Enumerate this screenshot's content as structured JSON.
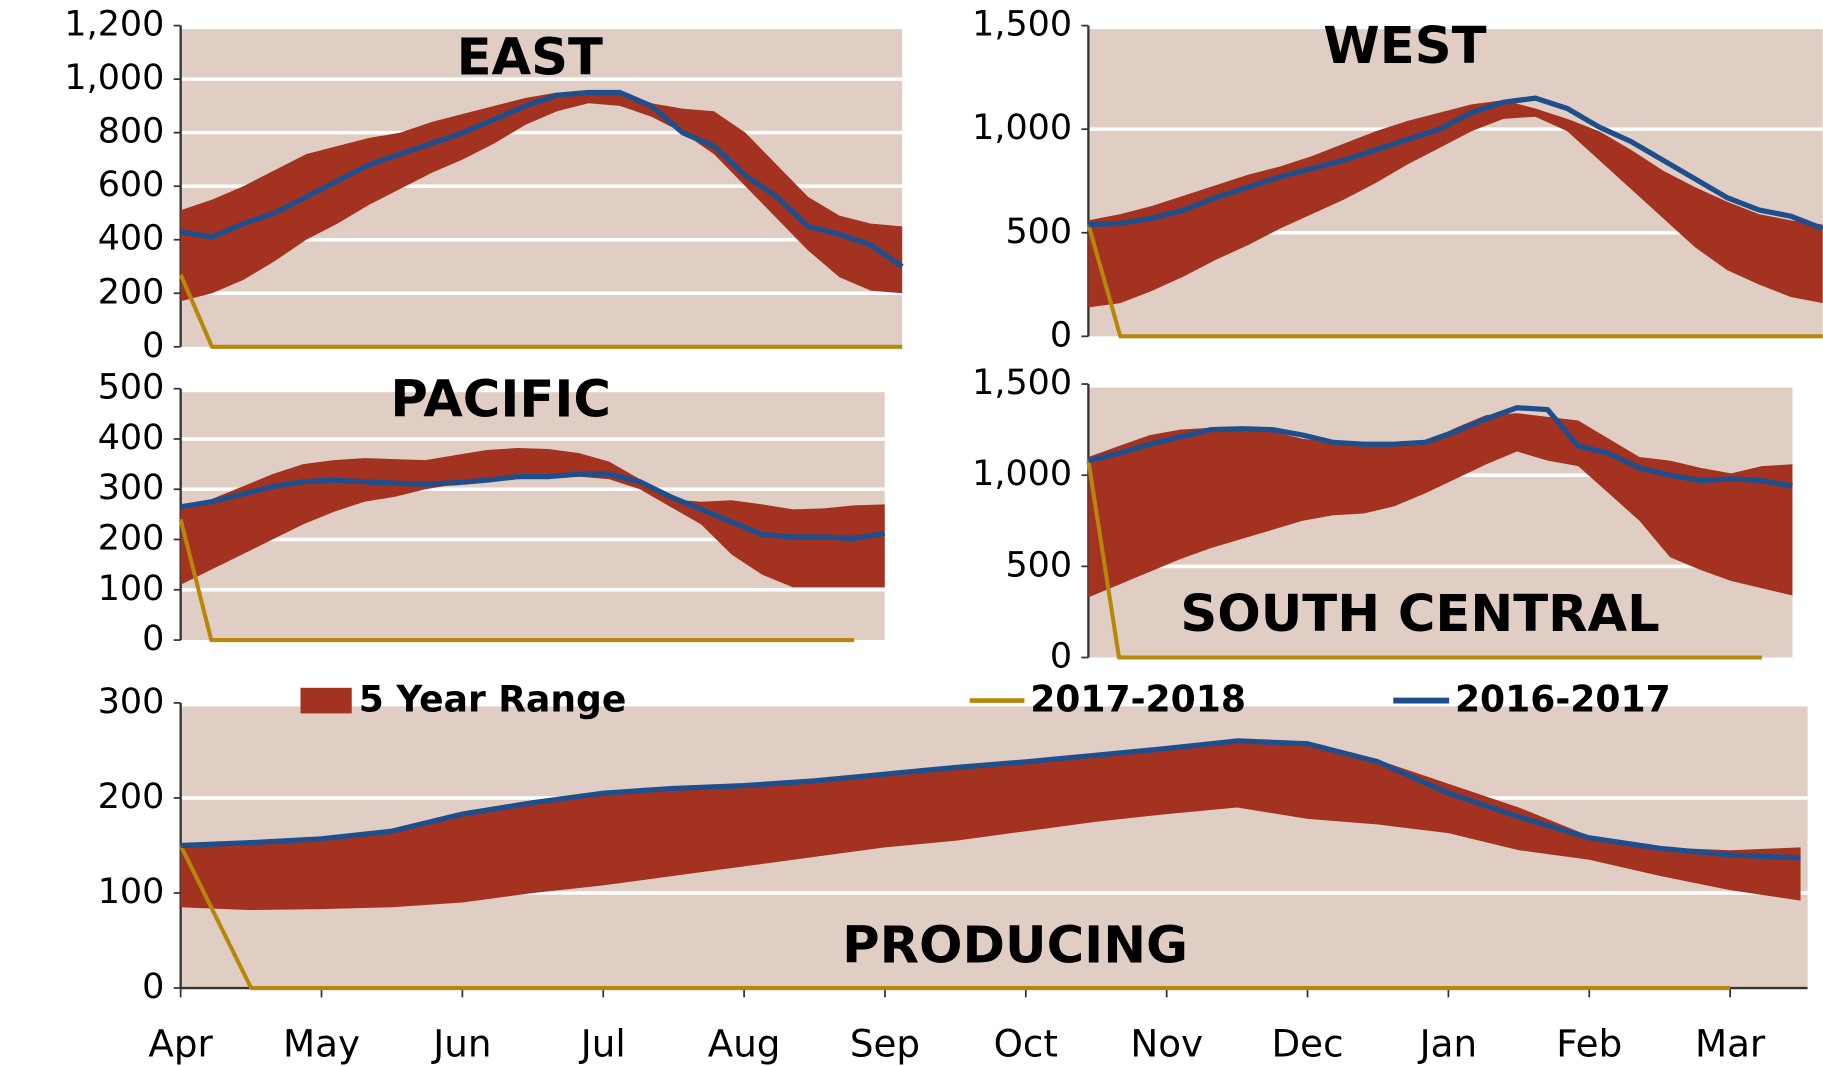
{
  "chart_data": [
    {
      "type": "range-line",
      "title": "EAST",
      "x": [
        0,
        0.5,
        1,
        1.5,
        2,
        2.5,
        3,
        3.5,
        4,
        4.5,
        5,
        5.5,
        6,
        6.5,
        7,
        7.5,
        8,
        8.5,
        9,
        9.5,
        10,
        10.5,
        11,
        11.5
      ],
      "xlim": [
        0,
        11.5
      ],
      "ylim": [
        0,
        1200
      ],
      "yticks": [
        0,
        200,
        400,
        600,
        800,
        {
          "value": 1000,
          "label": "1,000"
        },
        {
          "value": 1200,
          "label": "1,200"
        }
      ],
      "grid": true,
      "series": [
        {
          "color": "#a33220",
          "high": [
            510,
            550,
            600,
            660,
            720,
            750,
            780,
            800,
            840,
            870,
            900,
            930,
            950,
            950,
            950,
            910,
            890,
            880,
            800,
            680,
            560,
            490,
            460,
            450
          ],
          "low": [
            170,
            200,
            250,
            320,
            400,
            460,
            530,
            590,
            650,
            700,
            760,
            830,
            880,
            910,
            900,
            860,
            800,
            720,
            600,
            480,
            360,
            260,
            210,
            200
          ]
        },
        {
          "color": "#b8860b",
          "values": [
            270,
            0,
            0,
            0,
            0,
            0,
            0,
            0,
            0,
            0,
            0,
            0,
            0,
            0,
            0,
            0,
            0,
            0,
            0,
            0,
            0,
            0,
            0,
            0
          ]
        },
        {
          "color": "#1f4e8c",
          "values": [
            430,
            410,
            460,
            500,
            560,
            620,
            680,
            720,
            760,
            800,
            850,
            900,
            940,
            950,
            950,
            900,
            800,
            750,
            640,
            560,
            450,
            420,
            380,
            300
          ]
        }
      ]
    },
    {
      "type": "range-line",
      "title": "WEST",
      "x": [
        0,
        0.5,
        1,
        1.5,
        2,
        2.5,
        3,
        3.5,
        4,
        4.5,
        5,
        5.5,
        6,
        6.5,
        7,
        7.5,
        8,
        8.5,
        9,
        9.5,
        10,
        10.5,
        11,
        11.5
      ],
      "xlim": [
        0,
        11.5
      ],
      "ylim": [
        0,
        1500
      ],
      "yticks": [
        0,
        500,
        {
          "value": 1000,
          "label": "1,000"
        },
        {
          "value": 1500,
          "label": "1,500"
        }
      ],
      "grid": true,
      "series": [
        {
          "color": "#a33220",
          "high": [
            560,
            590,
            630,
            680,
            730,
            780,
            820,
            870,
            930,
            990,
            1040,
            1080,
            1120,
            1140,
            1100,
            1050,
            990,
            900,
            800,
            720,
            650,
            590,
            560,
            540
          ],
          "low": [
            140,
            160,
            220,
            290,
            370,
            440,
            520,
            590,
            660,
            740,
            830,
            910,
            990,
            1050,
            1060,
            990,
            850,
            710,
            570,
            430,
            320,
            250,
            190,
            160
          ]
        },
        {
          "color": "#b8860b",
          "values": [
            540,
            0,
            0,
            0,
            0,
            0,
            0,
            0,
            0,
            0,
            0,
            0,
            0,
            0,
            0,
            0,
            0,
            0,
            0,
            0,
            0,
            0,
            0,
            0
          ]
        },
        {
          "color": "#1f4e8c",
          "values": [
            540,
            545,
            570,
            610,
            670,
            720,
            770,
            810,
            850,
            900,
            950,
            1000,
            1080,
            1130,
            1150,
            1100,
            1010,
            940,
            850,
            760,
            670,
            610,
            580,
            520
          ]
        }
      ]
    },
    {
      "type": "range-line",
      "title": "PACIFIC",
      "x": [
        0,
        0.5,
        1,
        1.5,
        2,
        2.5,
        3,
        3.5,
        4,
        4.5,
        5,
        5.5,
        6,
        6.5,
        7,
        7.5,
        8,
        8.5,
        9,
        9.5,
        10,
        10.5,
        11,
        11.5
      ],
      "xlim": [
        0,
        11.5
      ],
      "ylim": [
        0,
        500
      ],
      "yticks": [
        0,
        100,
        200,
        300,
        400,
        500
      ],
      "grid": true,
      "series": [
        {
          "color": "#a33220",
          "high": [
            260,
            280,
            305,
            330,
            350,
            358,
            362,
            360,
            358,
            368,
            378,
            382,
            380,
            372,
            355,
            320,
            280,
            275,
            278,
            270,
            260,
            262,
            268,
            270
          ],
          "low": [
            110,
            140,
            170,
            200,
            230,
            255,
            275,
            285,
            300,
            310,
            315,
            320,
            325,
            325,
            320,
            300,
            265,
            230,
            170,
            130,
            105,
            105,
            105,
            105
          ]
        },
        {
          "color": "#b8860b",
          "values": [
            240,
            0,
            0,
            0,
            0,
            0,
            0,
            0,
            0,
            0,
            0,
            0,
            0,
            0,
            0,
            0,
            0,
            0,
            0,
            0,
            0,
            0,
            0,
            null
          ]
        },
        {
          "color": "#1f4e8c",
          "values": [
            265,
            275,
            290,
            305,
            315,
            318,
            315,
            312,
            310,
            313,
            318,
            325,
            325,
            330,
            330,
            315,
            285,
            260,
            235,
            210,
            205,
            205,
            202,
            212
          ]
        }
      ]
    },
    {
      "type": "range-line",
      "title": "SOUTH CENTRAL",
      "x": [
        0,
        0.5,
        1,
        1.5,
        2,
        2.5,
        3,
        3.5,
        4,
        4.5,
        5,
        5.5,
        6,
        6.5,
        7,
        7.5,
        8,
        8.5,
        9,
        9.5,
        10,
        10.5,
        11,
        11.5
      ],
      "xlim": [
        0,
        11.5
      ],
      "ylim": [
        0,
        1500
      ],
      "yticks": [
        0,
        500,
        {
          "value": 1000,
          "label": "1,000"
        },
        {
          "value": 1500,
          "label": "1,500"
        }
      ],
      "grid": true,
      "series": [
        {
          "color": "#a33220",
          "high": [
            1100,
            1160,
            1220,
            1250,
            1260,
            1250,
            1240,
            1200,
            1180,
            1170,
            1160,
            1180,
            1260,
            1330,
            1340,
            1320,
            1300,
            1200,
            1100,
            1080,
            1040,
            1010,
            1050,
            1060
          ],
          "low": [
            330,
            400,
            470,
            540,
            600,
            650,
            700,
            750,
            780,
            790,
            830,
            900,
            980,
            1060,
            1130,
            1080,
            1050,
            900,
            750,
            550,
            480,
            420,
            380,
            340
          ]
        },
        {
          "color": "#b8860b",
          "values": [
            1080,
            0,
            0,
            0,
            0,
            0,
            0,
            0,
            0,
            0,
            0,
            0,
            0,
            0,
            0,
            0,
            0,
            0,
            0,
            0,
            0,
            0,
            0,
            null
          ]
        },
        {
          "color": "#1f4e8c",
          "values": [
            1080,
            1120,
            1170,
            1210,
            1250,
            1255,
            1250,
            1220,
            1180,
            1170,
            1170,
            1180,
            1240,
            1310,
            1370,
            1360,
            1160,
            1120,
            1040,
            1000,
            970,
            980,
            970,
            940
          ]
        }
      ]
    },
    {
      "type": "range-line",
      "title": "PRODUCING",
      "x": [
        0,
        0.5,
        1,
        1.5,
        2,
        2.5,
        3,
        3.5,
        4,
        4.5,
        5,
        5.5,
        6,
        6.5,
        7,
        7.5,
        8,
        8.5,
        9,
        9.5,
        10,
        10.5,
        11,
        11.5
      ],
      "xlim": [
        0,
        11.55
      ],
      "ylim": [
        0,
        300
      ],
      "xticks": [
        {
          "value": 0,
          "label": "Apr"
        },
        {
          "value": 1,
          "label": "May"
        },
        {
          "value": 2,
          "label": "Jun"
        },
        {
          "value": 3,
          "label": "Jul"
        },
        {
          "value": 4,
          "label": "Aug"
        },
        {
          "value": 5,
          "label": "Sep"
        },
        {
          "value": 6,
          "label": "Oct"
        },
        {
          "value": 7,
          "label": "Nov"
        },
        {
          "value": 8,
          "label": "Dec"
        },
        {
          "value": 9,
          "label": "Jan"
        },
        {
          "value": 10,
          "label": "Feb"
        },
        {
          "value": 11,
          "label": "Mar"
        }
      ],
      "yticks": [
        0,
        100,
        200,
        300
      ],
      "grid": true,
      "series": [
        {
          "name": "5 Year Range",
          "color": "#a33220",
          "high": [
            150,
            153,
            157,
            165,
            183,
            195,
            205,
            210,
            213,
            218,
            225,
            232,
            238,
            245,
            252,
            260,
            257,
            240,
            215,
            190,
            160,
            148,
            145,
            148
          ],
          "low": [
            85,
            82,
            83,
            85,
            90,
            100,
            108,
            118,
            128,
            138,
            148,
            155,
            165,
            175,
            183,
            190,
            178,
            172,
            163,
            145,
            135,
            118,
            103,
            92
          ]
        },
        {
          "name": "2017-2018",
          "color": "#b8860b",
          "values": [
            150,
            0,
            0,
            0,
            0,
            0,
            0,
            0,
            0,
            0,
            0,
            0,
            0,
            0,
            0,
            0,
            0,
            0,
            0,
            0,
            0,
            0,
            0,
            null
          ]
        },
        {
          "name": "2016-2017",
          "color": "#1f4e8c",
          "values": [
            150,
            153,
            157,
            165,
            183,
            195,
            205,
            210,
            213,
            218,
            225,
            232,
            238,
            245,
            252,
            260,
            257,
            238,
            205,
            180,
            158,
            147,
            140,
            137
          ]
        }
      ]
    }
  ]
}
